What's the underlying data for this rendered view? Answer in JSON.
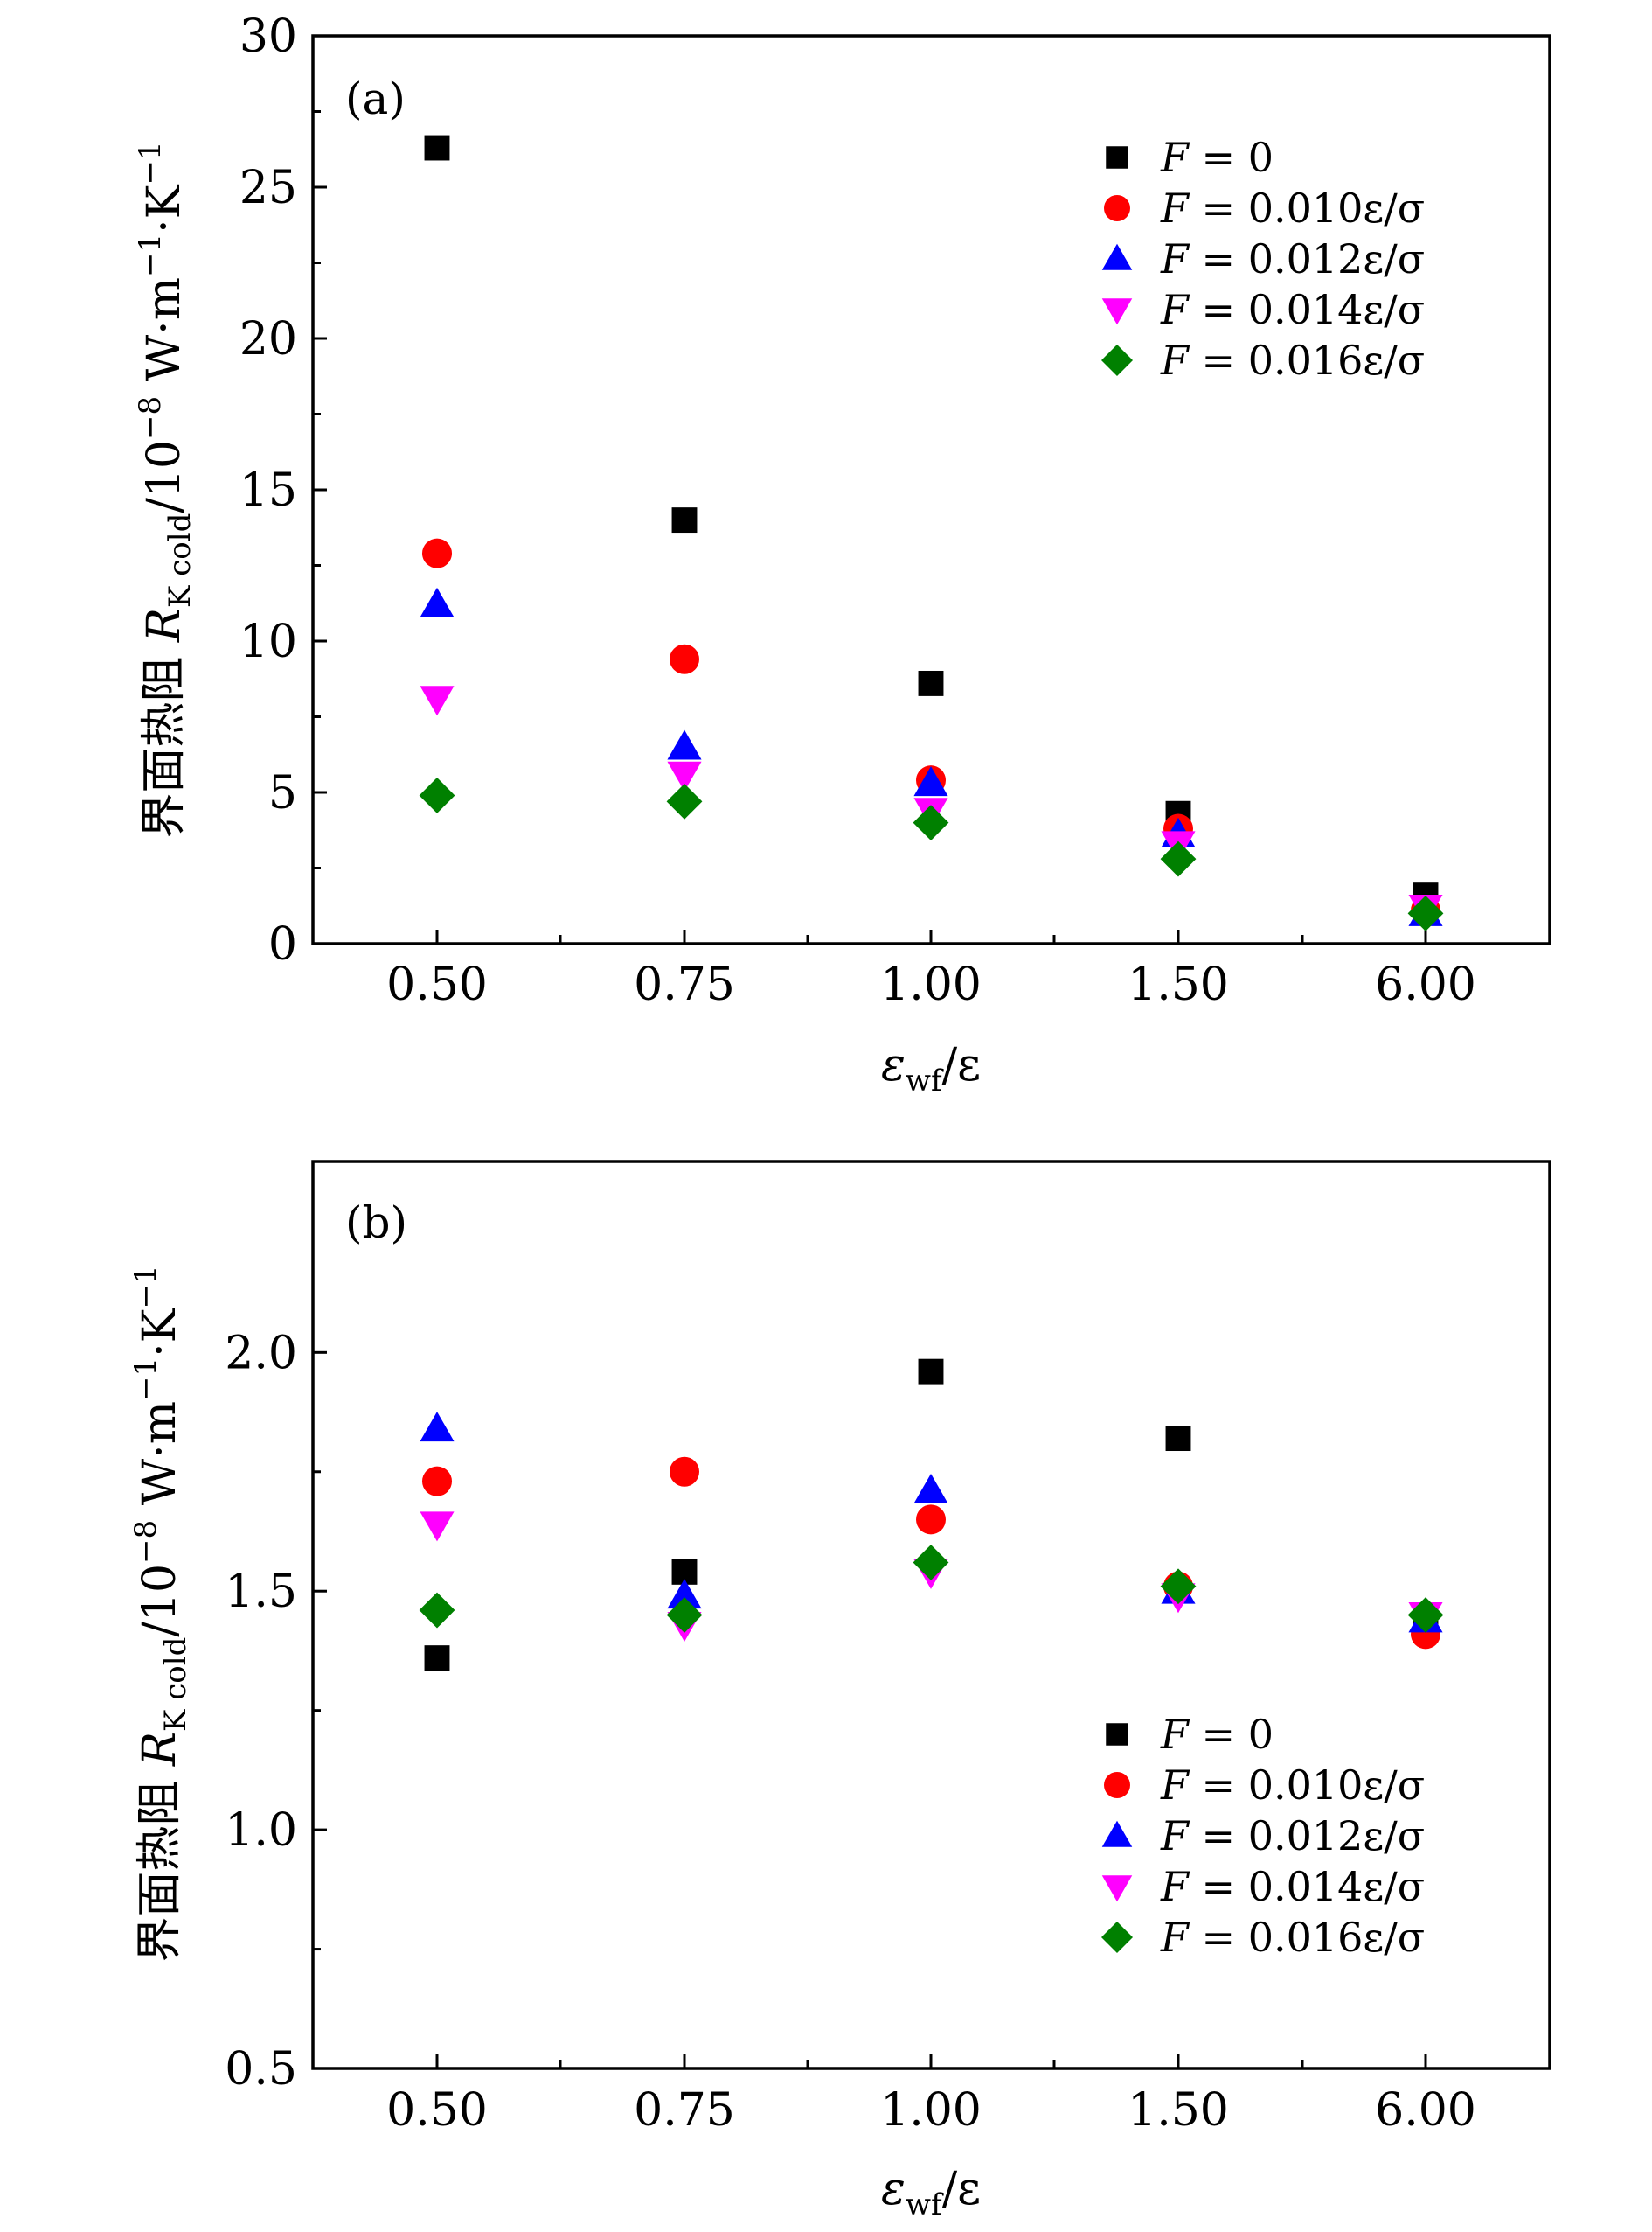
{
  "chart_data": [
    {
      "type": "scatter",
      "panel_label": "(a)",
      "xlabel_main": "ε",
      "xlabel_sub": "wf",
      "xlabel_tail": "/ε",
      "ylabel_prefix": "界面热阻 ",
      "ylabel_R": "R",
      "ylabel_sub": "K cold",
      "ylabel_tail": "/10",
      "ylabel_exp": "−8",
      "ylabel_unit": " W·m",
      "ylabel_unit_exp": "−1",
      "ylabel_unit2": "·K",
      "ylabel_unit2_exp": "−1",
      "categories": [
        "0.50",
        "0.75",
        "1.00",
        "1.50",
        "6.00"
      ],
      "ylim": [
        0,
        30
      ],
      "yticks": [
        0,
        5,
        10,
        15,
        20,
        25,
        30
      ],
      "ytick_labels": [
        "0",
        "5",
        "10",
        "15",
        "20",
        "25",
        "30"
      ],
      "legend_position": "top-right",
      "series": [
        {
          "name": "F=0",
          "label_F": "F",
          "label_rest": " = 0",
          "marker": "square",
          "color": "#000000",
          "values": [
            26.3,
            14.0,
            8.6,
            4.3,
            1.6
          ]
        },
        {
          "name": "F=0.010ε/σ",
          "label_F": "F",
          "label_rest": " = 0.010ε/σ",
          "marker": "circle",
          "color": "#ff0000",
          "values": [
            12.9,
            9.4,
            5.4,
            3.8,
            1.1
          ]
        },
        {
          "name": "F=0.012ε/σ",
          "label_F": "F",
          "label_rest": " = 0.012ε/σ",
          "marker": "triangle-up",
          "color": "#0000ff",
          "values": [
            11.2,
            6.5,
            5.3,
            3.6,
            1.0
          ]
        },
        {
          "name": "F=0.014ε/σ",
          "label_F": "F",
          "label_rest": " = 0.014ε/σ",
          "marker": "triangle-down",
          "color": "#ff00ff",
          "values": [
            8.1,
            5.6,
            4.4,
            3.3,
            1.2
          ]
        },
        {
          "name": "F=0.016ε/σ",
          "label_F": "F",
          "label_rest": " = 0.016ε/σ",
          "marker": "diamond",
          "color": "#008000",
          "values": [
            4.9,
            4.7,
            4.0,
            2.8,
            1.0
          ]
        }
      ]
    },
    {
      "type": "scatter",
      "panel_label": "(b)",
      "xlabel_main": "ε",
      "xlabel_sub": "wf",
      "xlabel_tail": "/ε",
      "ylabel_prefix": "界面热阻 ",
      "ylabel_R": "R",
      "ylabel_sub": "K cold",
      "ylabel_tail": "/10",
      "ylabel_exp": "−8",
      "ylabel_unit": " W·m",
      "ylabel_unit_exp": "−1",
      "ylabel_unit2": "·K",
      "ylabel_unit2_exp": "−1",
      "categories": [
        "0.50",
        "0.75",
        "1.00",
        "1.50",
        "6.00"
      ],
      "ylim": [
        0.5,
        2.4
      ],
      "yticks": [
        0.5,
        1.0,
        1.5,
        2.0
      ],
      "ytick_labels": [
        "0.5",
        "1.0",
        "1.5",
        "2.0"
      ],
      "legend_position": "bottom-right",
      "series": [
        {
          "name": "F=0",
          "label_F": "F",
          "label_rest": " = 0",
          "marker": "square",
          "color": "#000000",
          "values": [
            1.36,
            1.54,
            1.96,
            1.82,
            1.45
          ]
        },
        {
          "name": "F=0.010ε/σ",
          "label_F": "F",
          "label_rest": " = 0.010ε/σ",
          "marker": "circle",
          "color": "#ff0000",
          "values": [
            1.73,
            1.75,
            1.65,
            1.51,
            1.41
          ]
        },
        {
          "name": "F=0.012ε/σ",
          "label_F": "F",
          "label_rest": " = 0.012ε/σ",
          "marker": "triangle-up",
          "color": "#0000ff",
          "values": [
            1.84,
            1.49,
            1.71,
            1.5,
            1.44
          ]
        },
        {
          "name": "F=0.014ε/σ",
          "label_F": "F",
          "label_rest": " = 0.014ε/σ",
          "marker": "triangle-down",
          "color": "#ff00ff",
          "values": [
            1.64,
            1.43,
            1.54,
            1.49,
            1.45
          ]
        },
        {
          "name": "F=0.016ε/σ",
          "label_F": "F",
          "label_rest": " = 0.016ε/σ",
          "marker": "diamond",
          "color": "#008000",
          "values": [
            1.46,
            1.45,
            1.56,
            1.51,
            1.45
          ]
        }
      ]
    }
  ]
}
